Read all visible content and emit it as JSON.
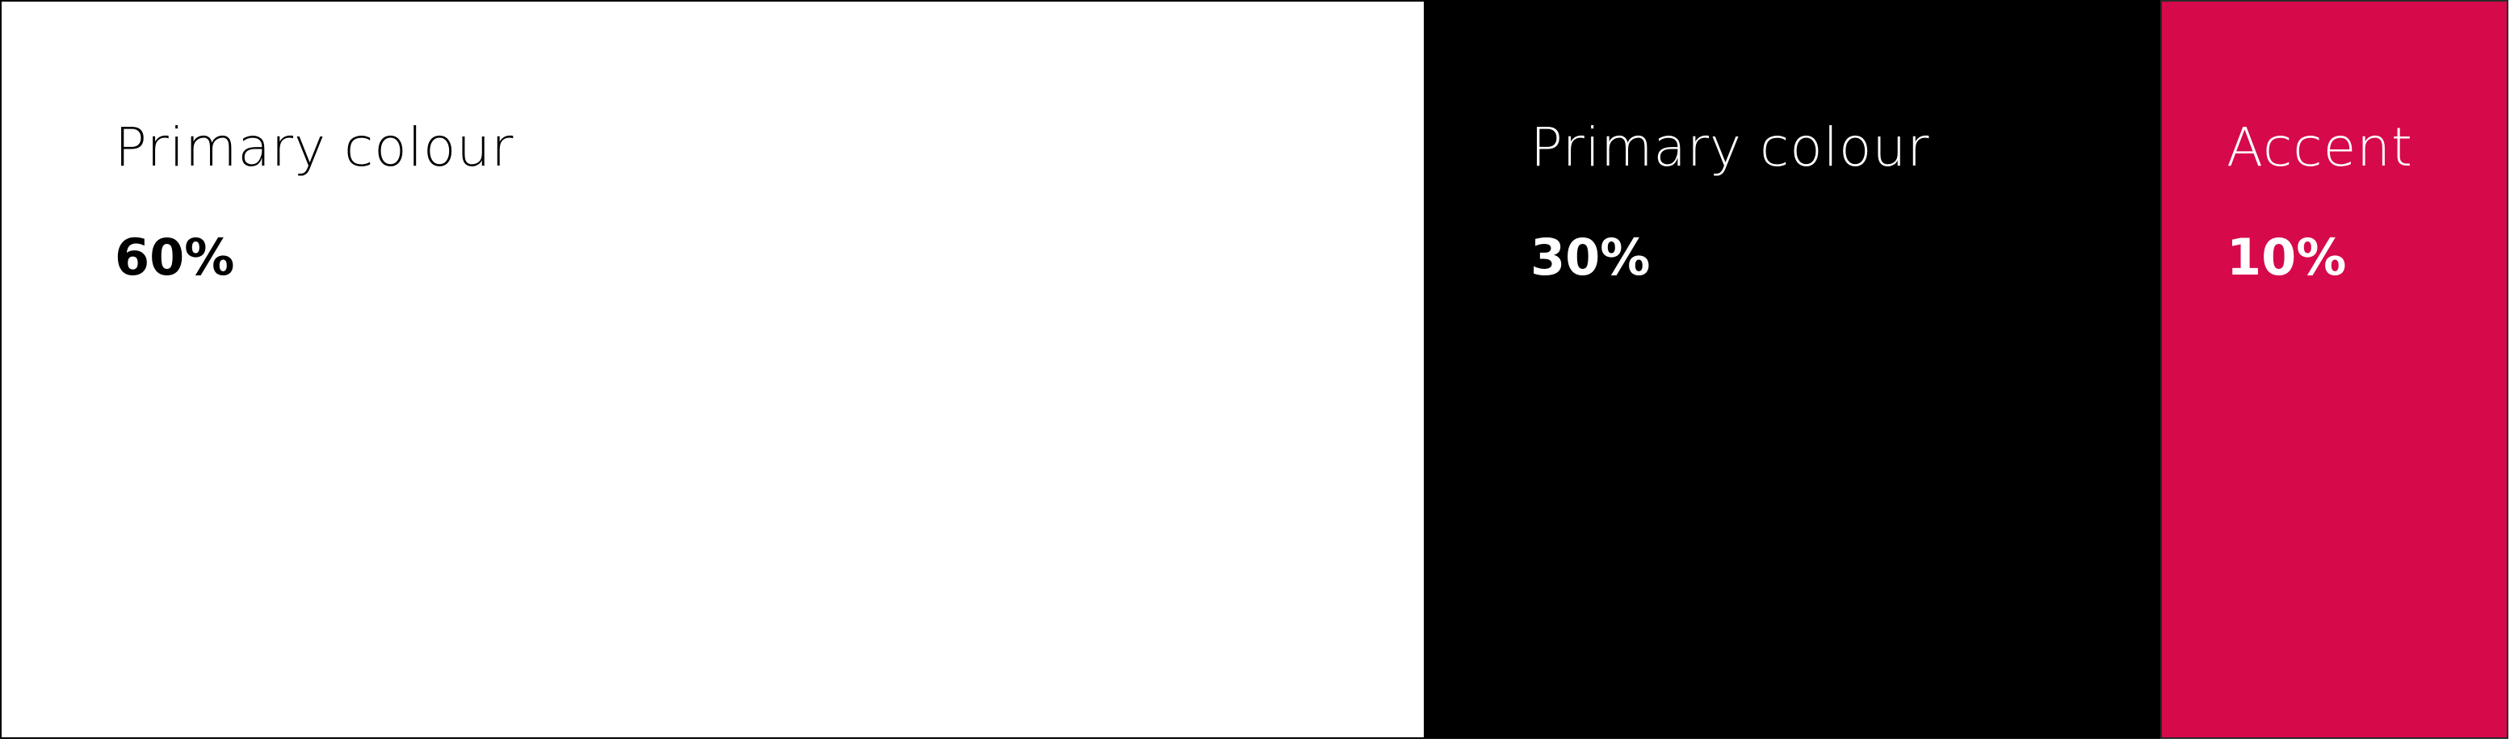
{
  "swatches": [
    {
      "label": "Primary colour",
      "percentage": "60%",
      "share": 60,
      "background": "#ffffff",
      "text_color": "#000000"
    },
    {
      "label": "Primary colour",
      "percentage": "30%",
      "share": 30,
      "background": "#000000",
      "text_color": "#ffffff"
    },
    {
      "label": "Accent",
      "percentage": "10%",
      "share": 10,
      "background": "#d6094b",
      "text_color": "#ffffff"
    }
  ]
}
